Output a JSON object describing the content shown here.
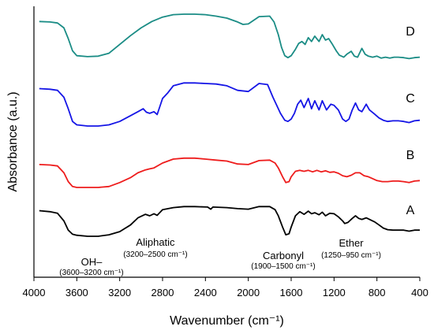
{
  "chart_data": {
    "type": "line",
    "title": "",
    "xlabel": "Wavenumber (cm⁻¹)",
    "ylabel": "Absorbance (a.u.)",
    "xlim": [
      4000,
      400
    ],
    "x_reversed": true,
    "y_ticks_shown": false,
    "grid": false,
    "legend": "labels at right end of each curve",
    "x_ticks": [
      4000,
      3600,
      3200,
      2800,
      2400,
      2000,
      1600,
      1200,
      800,
      400
    ],
    "x_tick_labels": [
      "4000",
      "3600",
      "3200",
      "2800",
      "2400",
      "2000",
      "1600",
      "1200",
      "800",
      "400"
    ],
    "series": [
      {
        "label": "A",
        "color": "#000000",
        "baseline_offset": 0,
        "points": [
          [
            3950,
            0.5
          ],
          [
            3850,
            0.48
          ],
          [
            3780,
            0.45
          ],
          [
            3720,
            0.3
          ],
          [
            3680,
            0.12
          ],
          [
            3640,
            0.04
          ],
          [
            3600,
            0.02
          ],
          [
            3500,
            0.0
          ],
          [
            3400,
            0.0
          ],
          [
            3300,
            0.03
          ],
          [
            3200,
            0.09
          ],
          [
            3100,
            0.22
          ],
          [
            3030,
            0.36
          ],
          [
            2960,
            0.43
          ],
          [
            2920,
            0.4
          ],
          [
            2880,
            0.44
          ],
          [
            2850,
            0.41
          ],
          [
            2800,
            0.52
          ],
          [
            2700,
            0.56
          ],
          [
            2600,
            0.58
          ],
          [
            2500,
            0.58
          ],
          [
            2380,
            0.57
          ],
          [
            2350,
            0.53
          ],
          [
            2330,
            0.57
          ],
          [
            2200,
            0.56
          ],
          [
            2100,
            0.54
          ],
          [
            2000,
            0.53
          ],
          [
            1900,
            0.58
          ],
          [
            1800,
            0.58
          ],
          [
            1750,
            0.52
          ],
          [
            1720,
            0.4
          ],
          [
            1680,
            0.18
          ],
          [
            1650,
            0.03
          ],
          [
            1620,
            0.05
          ],
          [
            1600,
            0.18
          ],
          [
            1560,
            0.4
          ],
          [
            1520,
            0.48
          ],
          [
            1480,
            0.43
          ],
          [
            1440,
            0.49
          ],
          [
            1410,
            0.44
          ],
          [
            1380,
            0.46
          ],
          [
            1340,
            0.42
          ],
          [
            1310,
            0.47
          ],
          [
            1280,
            0.4
          ],
          [
            1240,
            0.45
          ],
          [
            1200,
            0.44
          ],
          [
            1160,
            0.38
          ],
          [
            1120,
            0.3
          ],
          [
            1100,
            0.25
          ],
          [
            1070,
            0.27
          ],
          [
            1030,
            0.35
          ],
          [
            1000,
            0.4
          ],
          [
            970,
            0.35
          ],
          [
            940,
            0.33
          ],
          [
            900,
            0.36
          ],
          [
            860,
            0.32
          ],
          [
            820,
            0.28
          ],
          [
            780,
            0.22
          ],
          [
            740,
            0.16
          ],
          [
            700,
            0.13
          ],
          [
            650,
            0.12
          ],
          [
            600,
            0.12
          ],
          [
            550,
            0.12
          ],
          [
            500,
            0.1
          ],
          [
            450,
            0.12
          ],
          [
            400,
            0.12
          ]
        ]
      },
      {
        "label": "B",
        "color": "#ee1c1c",
        "baseline_offset": 1,
        "points": [
          [
            3950,
            0.47
          ],
          [
            3850,
            0.46
          ],
          [
            3780,
            0.44
          ],
          [
            3720,
            0.3
          ],
          [
            3680,
            0.12
          ],
          [
            3640,
            0.02
          ],
          [
            3600,
            0.0
          ],
          [
            3500,
            0.0
          ],
          [
            3400,
            0.0
          ],
          [
            3300,
            0.02
          ],
          [
            3200,
            0.1
          ],
          [
            3100,
            0.2
          ],
          [
            3030,
            0.3
          ],
          [
            2960,
            0.36
          ],
          [
            2920,
            0.38
          ],
          [
            2880,
            0.4
          ],
          [
            2800,
            0.5
          ],
          [
            2700,
            0.58
          ],
          [
            2600,
            0.6
          ],
          [
            2500,
            0.6
          ],
          [
            2400,
            0.58
          ],
          [
            2300,
            0.56
          ],
          [
            2200,
            0.54
          ],
          [
            2100,
            0.48
          ],
          [
            2000,
            0.47
          ],
          [
            1900,
            0.55
          ],
          [
            1800,
            0.56
          ],
          [
            1750,
            0.5
          ],
          [
            1720,
            0.4
          ],
          [
            1680,
            0.22
          ],
          [
            1650,
            0.1
          ],
          [
            1620,
            0.12
          ],
          [
            1600,
            0.22
          ],
          [
            1560,
            0.33
          ],
          [
            1520,
            0.35
          ],
          [
            1480,
            0.33
          ],
          [
            1440,
            0.35
          ],
          [
            1400,
            0.32
          ],
          [
            1360,
            0.35
          ],
          [
            1320,
            0.32
          ],
          [
            1280,
            0.34
          ],
          [
            1240,
            0.31
          ],
          [
            1200,
            0.32
          ],
          [
            1160,
            0.29
          ],
          [
            1120,
            0.24
          ],
          [
            1080,
            0.22
          ],
          [
            1040,
            0.25
          ],
          [
            1000,
            0.3
          ],
          [
            960,
            0.3
          ],
          [
            920,
            0.24
          ],
          [
            880,
            0.22
          ],
          [
            840,
            0.18
          ],
          [
            800,
            0.14
          ],
          [
            750,
            0.12
          ],
          [
            700,
            0.12
          ],
          [
            650,
            0.13
          ],
          [
            600,
            0.13
          ],
          [
            550,
            0.12
          ],
          [
            500,
            0.1
          ],
          [
            450,
            0.13
          ],
          [
            400,
            0.14
          ]
        ]
      },
      {
        "label": "C",
        "color": "#1515e6",
        "baseline_offset": 2,
        "points": [
          [
            3950,
            0.65
          ],
          [
            3850,
            0.64
          ],
          [
            3780,
            0.62
          ],
          [
            3720,
            0.5
          ],
          [
            3680,
            0.3
          ],
          [
            3640,
            0.08
          ],
          [
            3600,
            0.02
          ],
          [
            3500,
            0.0
          ],
          [
            3400,
            0.0
          ],
          [
            3300,
            0.02
          ],
          [
            3200,
            0.08
          ],
          [
            3100,
            0.18
          ],
          [
            3030,
            0.25
          ],
          [
            2980,
            0.3
          ],
          [
            2950,
            0.24
          ],
          [
            2920,
            0.22
          ],
          [
            2880,
            0.25
          ],
          [
            2850,
            0.2
          ],
          [
            2800,
            0.48
          ],
          [
            2750,
            0.58
          ],
          [
            2700,
            0.7
          ],
          [
            2600,
            0.75
          ],
          [
            2500,
            0.75
          ],
          [
            2400,
            0.74
          ],
          [
            2300,
            0.73
          ],
          [
            2200,
            0.7
          ],
          [
            2100,
            0.62
          ],
          [
            2000,
            0.6
          ],
          [
            1900,
            0.74
          ],
          [
            1820,
            0.72
          ],
          [
            1770,
            0.5
          ],
          [
            1740,
            0.38
          ],
          [
            1700,
            0.22
          ],
          [
            1660,
            0.1
          ],
          [
            1630,
            0.08
          ],
          [
            1600,
            0.12
          ],
          [
            1570,
            0.22
          ],
          [
            1540,
            0.38
          ],
          [
            1510,
            0.45
          ],
          [
            1480,
            0.32
          ],
          [
            1440,
            0.48
          ],
          [
            1410,
            0.3
          ],
          [
            1380,
            0.44
          ],
          [
            1340,
            0.28
          ],
          [
            1310,
            0.44
          ],
          [
            1270,
            0.28
          ],
          [
            1230,
            0.38
          ],
          [
            1200,
            0.36
          ],
          [
            1160,
            0.28
          ],
          [
            1120,
            0.12
          ],
          [
            1090,
            0.08
          ],
          [
            1060,
            0.12
          ],
          [
            1030,
            0.28
          ],
          [
            1000,
            0.4
          ],
          [
            970,
            0.28
          ],
          [
            940,
            0.25
          ],
          [
            900,
            0.38
          ],
          [
            870,
            0.28
          ],
          [
            830,
            0.22
          ],
          [
            780,
            0.14
          ],
          [
            740,
            0.1
          ],
          [
            700,
            0.08
          ],
          [
            650,
            0.09
          ],
          [
            600,
            0.09
          ],
          [
            550,
            0.08
          ],
          [
            500,
            0.06
          ],
          [
            450,
            0.09
          ],
          [
            400,
            0.1
          ]
        ]
      },
      {
        "label": "D",
        "color": "#1a8c85",
        "baseline_offset": 3,
        "points": [
          [
            3950,
            0.85
          ],
          [
            3850,
            0.84
          ],
          [
            3780,
            0.82
          ],
          [
            3720,
            0.72
          ],
          [
            3680,
            0.5
          ],
          [
            3640,
            0.25
          ],
          [
            3600,
            0.15
          ],
          [
            3500,
            0.13
          ],
          [
            3400,
            0.14
          ],
          [
            3300,
            0.2
          ],
          [
            3200,
            0.38
          ],
          [
            3100,
            0.56
          ],
          [
            3000,
            0.72
          ],
          [
            2900,
            0.85
          ],
          [
            2800,
            0.94
          ],
          [
            2700,
            0.99
          ],
          [
            2600,
            1.0
          ],
          [
            2500,
            1.0
          ],
          [
            2400,
            0.99
          ],
          [
            2300,
            0.96
          ],
          [
            2200,
            0.92
          ],
          [
            2100,
            0.84
          ],
          [
            2050,
            0.79
          ],
          [
            2000,
            0.8
          ],
          [
            1900,
            0.95
          ],
          [
            1800,
            0.96
          ],
          [
            1760,
            0.84
          ],
          [
            1720,
            0.58
          ],
          [
            1690,
            0.32
          ],
          [
            1660,
            0.15
          ],
          [
            1630,
            0.11
          ],
          [
            1600,
            0.15
          ],
          [
            1560,
            0.28
          ],
          [
            1530,
            0.4
          ],
          [
            1500,
            0.44
          ],
          [
            1470,
            0.38
          ],
          [
            1440,
            0.52
          ],
          [
            1410,
            0.44
          ],
          [
            1380,
            0.55
          ],
          [
            1340,
            0.44
          ],
          [
            1310,
            0.58
          ],
          [
            1280,
            0.47
          ],
          [
            1250,
            0.5
          ],
          [
            1220,
            0.4
          ],
          [
            1180,
            0.25
          ],
          [
            1150,
            0.16
          ],
          [
            1110,
            0.12
          ],
          [
            1080,
            0.18
          ],
          [
            1040,
            0.24
          ],
          [
            1010,
            0.14
          ],
          [
            980,
            0.12
          ],
          [
            940,
            0.3
          ],
          [
            910,
            0.18
          ],
          [
            880,
            0.14
          ],
          [
            840,
            0.12
          ],
          [
            800,
            0.14
          ],
          [
            760,
            0.1
          ],
          [
            720,
            0.12
          ],
          [
            680,
            0.1
          ],
          [
            640,
            0.12
          ],
          [
            600,
            0.12
          ],
          [
            550,
            0.11
          ],
          [
            500,
            0.09
          ],
          [
            450,
            0.11
          ],
          [
            400,
            0.12
          ]
        ]
      }
    ],
    "annotations": [
      {
        "name": "OH–",
        "range": "(3600–3200 cm⁻¹)",
        "x": 3400
      },
      {
        "name": "Aliphatic",
        "range": "(3200–2500 cm⁻¹)",
        "x": 2850
      },
      {
        "name": "Carbonyl",
        "range": "(1900–1500 cm⁻¹)",
        "x": 1700
      },
      {
        "name": "Ether",
        "range": "(1250–950 cm⁻¹)",
        "x": 1100
      }
    ]
  }
}
